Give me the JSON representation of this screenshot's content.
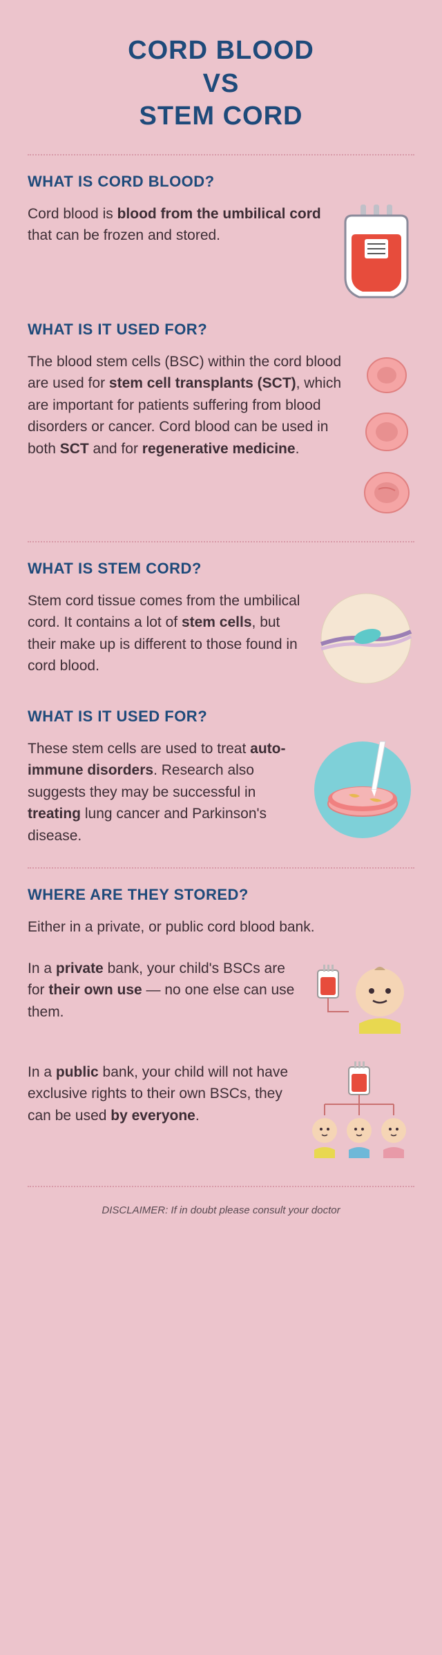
{
  "colors": {
    "background": "#ecc4cc",
    "title": "#1e4a7a",
    "heading": "#1e4a7a",
    "text": "#3d2d35",
    "divider": "#d89aa8",
    "bloodBag": "#e74c3c",
    "bloodBagOutline": "#8a8a9a",
    "cellPink": "#f5a5a5",
    "cellDark": "#e08080",
    "circleCream": "#f5e6d3",
    "cordPurple": "#9b7fb5",
    "cordTeal": "#5ec9c9",
    "dishBlue": "#5ec9c9",
    "dishPink": "#f08080",
    "babyFace": "#f5d5b5",
    "babyYellow": "#e8d850",
    "childBlue": "#6eb8d8",
    "childPink": "#e89aa8"
  },
  "title": "CORD BLOOD\nVS\nSTEM CORD",
  "sections": [
    {
      "heading": "WHAT IS CORD BLOOD?",
      "html": "Cord blood is <b>blood from the umbilical cord</b> that can be frozen and stored."
    },
    {
      "heading": "WHAT IS IT USED FOR?",
      "html": "The blood stem cells (BSC) within the cord blood are used for <b>stem cell transplants (SCT)</b>, which are important for patients suffering from blood disorders or cancer. Cord blood can be used in both <b>SCT</b> and for <b>regenerative medicine</b>."
    },
    {
      "heading": "WHAT IS STEM CORD?",
      "html": "Stem cord tissue comes from the umbilical cord. It contains a lot of <b>stem cells</b>, but their make up is different to those found in cord blood."
    },
    {
      "heading": "WHAT IS IT USED FOR?",
      "html": "These stem cells are used to treat <b>auto-immune disorders</b>. Research also suggests they may be successful in <b>treating</b> lung cancer and Parkinson's disease."
    },
    {
      "heading": "WHERE ARE THEY STORED?",
      "intro": "Either in a private, or public cord blood bank.",
      "privateHtml": "In a <b>private</b> bank, your child's BSCs are for <b>their own use</b> — no one else can use them.",
      "publicHtml": "In a <b>public</b> bank, your child will not have exclusive rights to their own BSCs, they can be used <b>by everyone</b>."
    }
  ],
  "disclaimer": "DISCLAIMER: If in doubt please consult your doctor"
}
